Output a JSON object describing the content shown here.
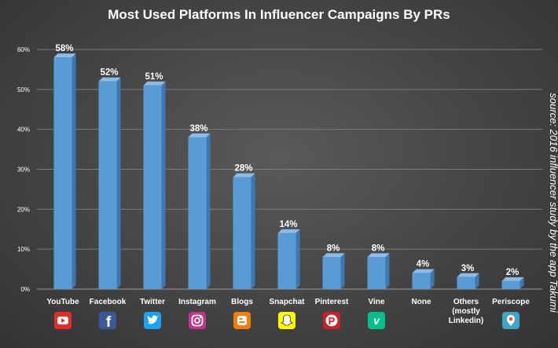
{
  "chart_data": {
    "type": "bar",
    "title": "Most Used Platforms In Influencer Campaigns By PRs",
    "source_note": "source: 2016 influencer study by the app Takumi",
    "categories": [
      "YouTube",
      "Facebook",
      "Twitter",
      "Instagram",
      "Blogs",
      "Snapchat",
      "Pinterest",
      "Vine",
      "None",
      "Others (mostly Linkedin)",
      "Periscope"
    ],
    "category_lines": [
      [
        "YouTube"
      ],
      [
        "Facebook"
      ],
      [
        "Twitter"
      ],
      [
        "Instagram"
      ],
      [
        "Blogs"
      ],
      [
        "Snapchat"
      ],
      [
        "Pinterest"
      ],
      [
        "Vine"
      ],
      [
        "None"
      ],
      [
        "Others",
        "(mostly",
        "Linkedin)"
      ],
      [
        "Periscope"
      ]
    ],
    "values": [
      58,
      52,
      51,
      38,
      28,
      14,
      8,
      8,
      4,
      3,
      2
    ],
    "data_labels": [
      "58%",
      "52%",
      "51%",
      "38%",
      "28%",
      "14%",
      "8%",
      "8%",
      "4%",
      "3%",
      "2%"
    ],
    "y_ticks": [
      0,
      10,
      20,
      30,
      40,
      50,
      60
    ],
    "y_tick_labels": [
      "0%",
      "10%",
      "20%",
      "30%",
      "40%",
      "50%",
      "60%"
    ],
    "ylim": [
      0,
      60
    ],
    "grid": true,
    "legend": "none",
    "colors": {
      "bar_front": "#5b9bd5",
      "bar_side": "#3f78b0",
      "bar_top": "#8cbde8",
      "grid": "#7a7a7a"
    },
    "icons": [
      {
        "name": "youtube-icon",
        "bg": "#e52d27"
      },
      {
        "name": "facebook-icon",
        "bg": "#3b5998"
      },
      {
        "name": "twitter-icon",
        "bg": "#1da1f2"
      },
      {
        "name": "instagram-icon",
        "bg": "#c1358a"
      },
      {
        "name": "blogger-icon",
        "bg": "#f57d00"
      },
      {
        "name": "snapchat-icon",
        "bg": "#fffc00"
      },
      {
        "name": "pinterest-icon",
        "bg": "#cb2027"
      },
      {
        "name": "vine-icon",
        "bg": "#00bf8f"
      },
      {
        "name": "none-icon",
        "bg": ""
      },
      {
        "name": "others-icon",
        "bg": ""
      },
      {
        "name": "periscope-icon",
        "bg": "#40a4c4"
      }
    ]
  }
}
